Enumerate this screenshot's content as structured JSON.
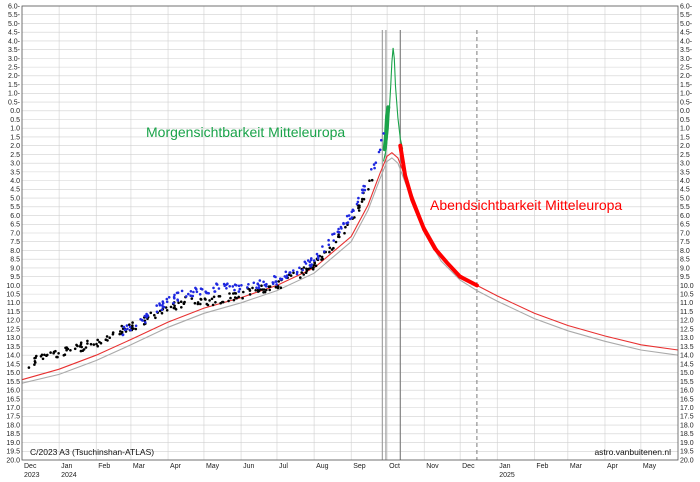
{
  "chart_data": {
    "type": "scatter",
    "title": "",
    "xlabel": "",
    "ylabel": "",
    "y_axis": {
      "min": -6.0,
      "max": 20.0,
      "step": 0.5,
      "inverted": true,
      "tick_labels": [
        "6.0-",
        "5.5-",
        "5.0-",
        "4.5-",
        "4.0-",
        "3.5-",
        "3.0-",
        "2.5-",
        "2.0-",
        "1.5-",
        "1.0-",
        "0.5-",
        "0.0",
        "0.5",
        "1.0",
        "1.5",
        "2.0",
        "2.5",
        "3.0",
        "3.5",
        "4.0",
        "4.5",
        "5.0",
        "5.5",
        "6.0",
        "6.5",
        "7.0",
        "7.5",
        "8.0",
        "8.5",
        "9.0",
        "9.5",
        "10.0",
        "10.5",
        "11.0",
        "11.5",
        "12.0",
        "12.5",
        "13.0",
        "13.5",
        "14.0",
        "14.5",
        "15.0",
        "15.5",
        "16.0",
        "16.5",
        "17.0",
        "17.5",
        "18.0",
        "18.5",
        "19.0",
        "19.5",
        "20.0"
      ]
    },
    "x_axis": {
      "start": "2023-12-01",
      "end": "2025-06-01",
      "month_labels": [
        {
          "date": "2023-12-01",
          "label": "Dec",
          "year": "2023"
        },
        {
          "date": "2024-01-01",
          "label": "Jan",
          "year": "2024"
        },
        {
          "date": "2024-02-01",
          "label": "Feb",
          "year": ""
        },
        {
          "date": "2024-03-01",
          "label": "Mar",
          "year": ""
        },
        {
          "date": "2024-04-01",
          "label": "Apr",
          "year": ""
        },
        {
          "date": "2024-05-01",
          "label": "May",
          "year": ""
        },
        {
          "date": "2024-06-01",
          "label": "Jun",
          "year": ""
        },
        {
          "date": "2024-07-01",
          "label": "Jul",
          "year": ""
        },
        {
          "date": "2024-08-01",
          "label": "Aug",
          "year": ""
        },
        {
          "date": "2024-09-01",
          "label": "Sep",
          "year": ""
        },
        {
          "date": "2024-10-01",
          "label": "Oct",
          "year": ""
        },
        {
          "date": "2024-11-01",
          "label": "Nov",
          "year": ""
        },
        {
          "date": "2024-12-01",
          "label": "Dec",
          "year": ""
        },
        {
          "date": "2025-01-01",
          "label": "Jan",
          "year": "2025"
        },
        {
          "date": "2025-02-01",
          "label": "Feb",
          "year": ""
        },
        {
          "date": "2025-03-01",
          "label": "Mar",
          "year": ""
        },
        {
          "date": "2025-04-01",
          "label": "Apr",
          "year": ""
        },
        {
          "date": "2025-05-01",
          "label": "May",
          "year": ""
        }
      ]
    },
    "grid": true,
    "vertical_markers": [
      {
        "date": "2024-09-27",
        "style": "solid",
        "color": "#999999"
      },
      {
        "date": "2024-09-30",
        "style": "solid",
        "color": "#999999"
      },
      {
        "date": "2024-10-12",
        "style": "solid",
        "color": "#777777"
      },
      {
        "date": "2024-12-15",
        "style": "dashed",
        "color": "#888888"
      }
    ],
    "series": [
      {
        "color": "#e83030",
        "kind": "line",
        "points": [
          [
            "2023-12-01",
            15.4
          ],
          [
            "2024-01-01",
            14.8
          ],
          [
            "2024-02-01",
            14.0
          ],
          [
            "2024-03-01",
            13.1
          ],
          [
            "2024-04-01",
            12.1
          ],
          [
            "2024-05-01",
            11.3
          ],
          [
            "2024-06-01",
            10.7
          ],
          [
            "2024-07-01",
            10.0
          ],
          [
            "2024-08-01",
            9.0
          ],
          [
            "2024-09-01",
            7.2
          ],
          [
            "2024-09-15",
            5.4
          ],
          [
            "2024-09-25",
            3.6
          ],
          [
            "2024-10-01",
            2.6
          ],
          [
            "2024-10-05",
            2.4
          ],
          [
            "2024-10-10",
            2.7
          ],
          [
            "2024-10-15",
            3.6
          ],
          [
            "2024-11-01",
            6.6
          ],
          [
            "2024-11-15",
            8.3
          ],
          [
            "2024-12-01",
            9.4
          ],
          [
            "2024-12-15",
            10.0
          ],
          [
            "2025-01-01",
            10.6
          ],
          [
            "2025-02-01",
            11.6
          ],
          [
            "2025-03-01",
            12.3
          ],
          [
            "2025-04-01",
            12.9
          ],
          [
            "2025-05-01",
            13.4
          ],
          [
            "2025-06-01",
            13.7
          ]
        ]
      },
      {
        "color": "#aaaaaa",
        "kind": "line",
        "points": [
          [
            "2023-12-01",
            15.6
          ],
          [
            "2024-01-01",
            15.1
          ],
          [
            "2024-02-01",
            14.3
          ],
          [
            "2024-03-01",
            13.4
          ],
          [
            "2024-04-01",
            12.4
          ],
          [
            "2024-05-01",
            11.6
          ],
          [
            "2024-06-01",
            11.0
          ],
          [
            "2024-07-01",
            10.3
          ],
          [
            "2024-08-01",
            9.3
          ],
          [
            "2024-09-01",
            7.5
          ],
          [
            "2024-09-15",
            5.7
          ],
          [
            "2024-09-25",
            3.9
          ],
          [
            "2024-10-01",
            2.9
          ],
          [
            "2024-10-05",
            2.7
          ],
          [
            "2024-10-10",
            3.0
          ],
          [
            "2024-10-15",
            3.9
          ],
          [
            "2024-11-01",
            6.9
          ],
          [
            "2024-11-15",
            8.6
          ],
          [
            "2024-12-01",
            9.7
          ],
          [
            "2024-12-15",
            10.3
          ],
          [
            "2025-01-01",
            10.9
          ],
          [
            "2025-02-01",
            11.9
          ],
          [
            "2025-03-01",
            12.6
          ],
          [
            "2025-04-01",
            13.2
          ],
          [
            "2025-05-01",
            13.7
          ],
          [
            "2025-06-01",
            14.0
          ]
        ]
      },
      {
        "color": "#1aa34a",
        "kind": "line",
        "points": [
          [
            "2024-09-28",
            2.9
          ],
          [
            "2024-09-30",
            2.3
          ],
          [
            "2024-10-02",
            1.0
          ],
          [
            "2024-10-04",
            -1.4
          ],
          [
            "2024-10-05",
            -2.8
          ],
          [
            "2024-10-06",
            -3.6
          ],
          [
            "2024-10-07",
            -3.0
          ],
          [
            "2024-10-08",
            -1.4
          ],
          [
            "2024-10-10",
            0.4
          ],
          [
            "2024-10-12",
            1.6
          ],
          [
            "2024-10-14",
            2.2
          ]
        ]
      },
      {
        "color": "#1aa34a",
        "kind": "thick",
        "points": [
          [
            "2024-09-29",
            2.2
          ],
          [
            "2024-09-30",
            1.5
          ],
          [
            "2024-10-01",
            0.3
          ],
          [
            "2024-10-02",
            -0.2
          ]
        ]
      },
      {
        "color": "#ff0000",
        "kind": "thick",
        "points": [
          [
            "2024-10-12",
            2.0
          ],
          [
            "2024-10-16",
            3.7
          ],
          [
            "2024-10-22",
            5.1
          ],
          [
            "2024-11-01",
            6.8
          ],
          [
            "2024-11-10",
            7.9
          ],
          [
            "2024-11-20",
            8.7
          ],
          [
            "2024-12-01",
            9.5
          ],
          [
            "2024-12-15",
            10.0
          ]
        ]
      },
      {
        "color": "#000000",
        "kind": "scatter",
        "generated": true,
        "points": [
          [
            "2023-12-05",
            14.6
          ],
          [
            "2023-12-15",
            14.1
          ],
          [
            "2024-01-01",
            13.9
          ],
          [
            "2024-01-10",
            13.7
          ],
          [
            "2024-02-01",
            13.3
          ],
          [
            "2024-02-15",
            12.8
          ],
          [
            "2024-03-10",
            12.1
          ],
          [
            "2024-04-01",
            11.3
          ],
          [
            "2024-04-20",
            10.8
          ],
          [
            "2024-05-10",
            10.9
          ],
          [
            "2024-06-01",
            10.5
          ],
          [
            "2024-07-01",
            10.0
          ],
          [
            "2024-08-01",
            8.9
          ],
          [
            "2024-09-01",
            6.5
          ],
          [
            "2024-09-20",
            3.6
          ]
        ]
      },
      {
        "color": "#1f28e0",
        "kind": "scatter",
        "generated": true,
        "points": [
          [
            "2024-02-20",
            12.8
          ],
          [
            "2024-03-15",
            11.8
          ],
          [
            "2024-04-01",
            10.9
          ],
          [
            "2024-04-15",
            10.5
          ],
          [
            "2024-05-01",
            10.3
          ],
          [
            "2024-05-15",
            10.1
          ],
          [
            "2024-06-01",
            10.1
          ],
          [
            "2024-07-01",
            9.7
          ],
          [
            "2024-08-01",
            8.6
          ],
          [
            "2024-09-01",
            6.0
          ],
          [
            "2024-09-20",
            3.2
          ],
          [
            "2024-09-29",
            1.3
          ]
        ]
      }
    ],
    "annotations": [
      {
        "text": "Morgensichtbarkeit Mitteleuropa",
        "color": "#1aa34a"
      },
      {
        "text": "Abendsichtbarkeit Mitteleuropa",
        "color": "#ff0000"
      }
    ],
    "corner_labels": {
      "bottom_left": "C/2023 A3 (Tsuchinshan-ATLAS)",
      "bottom_right": "astro.vanbuitenen.nl"
    }
  }
}
